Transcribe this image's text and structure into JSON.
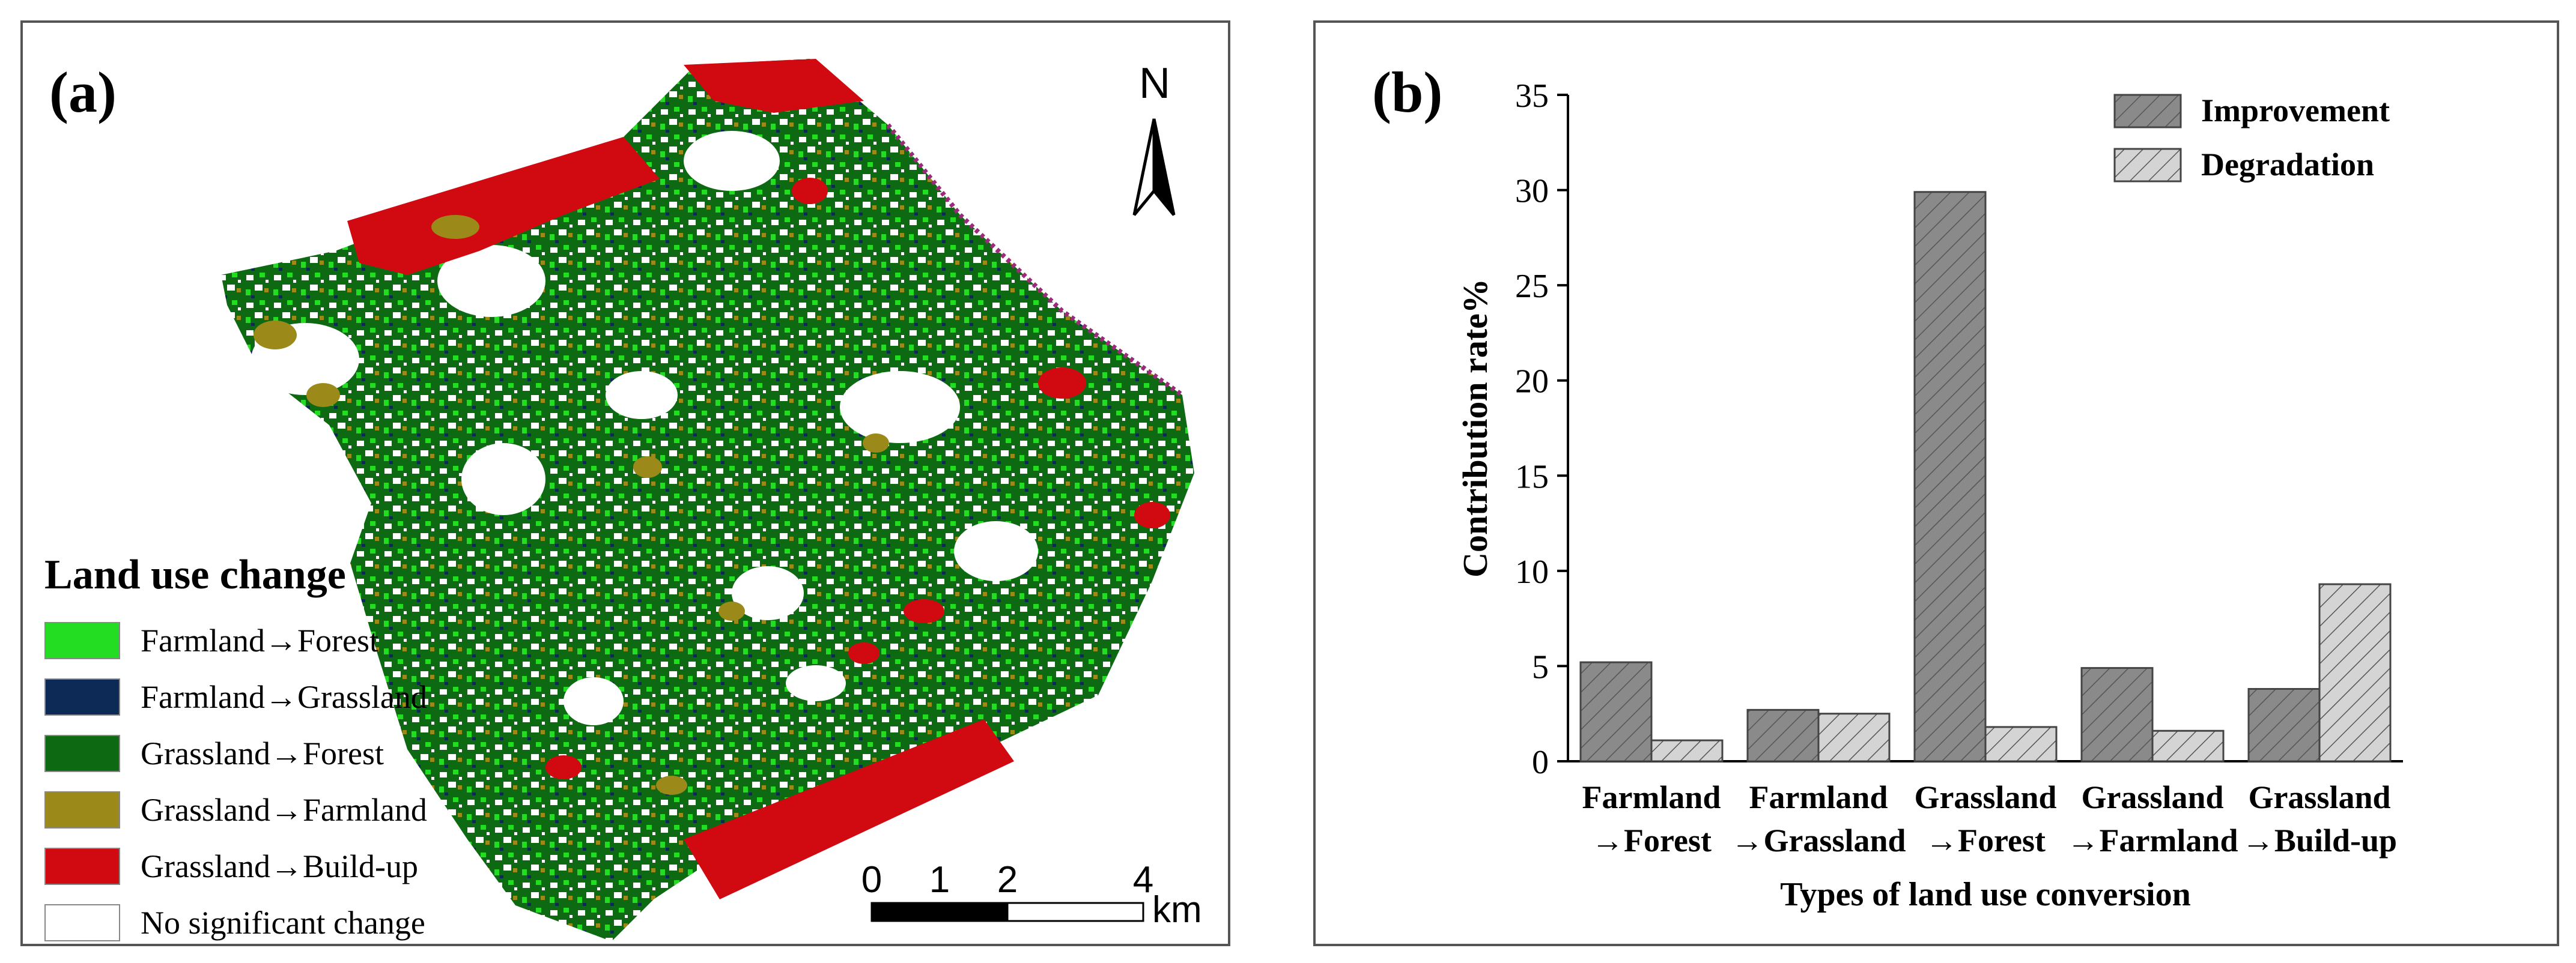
{
  "panel_a": {
    "label": "(a)",
    "legend_title": "Land use change",
    "legend": [
      {
        "label": "Farmland→Forest",
        "color": "#22dd22"
      },
      {
        "label": "Farmland→Grassland",
        "color": "#0c2a55"
      },
      {
        "label": "Grassland→Forest",
        "color": "#0e6a12"
      },
      {
        "label": "Grassland→Farmland",
        "color": "#9b8a1a"
      },
      {
        "label": "Grassland→Build-up",
        "color": "#d10a12"
      },
      {
        "label": "No significant change",
        "color": "#ffffff"
      }
    ],
    "north_label": "N",
    "scale_ticks": [
      "0",
      "1",
      "2",
      "4"
    ],
    "scale_unit": "km"
  },
  "panel_b": {
    "label": "(b)"
  },
  "chart_data": {
    "type": "bar",
    "categories": [
      [
        "Farmland",
        "→Forest"
      ],
      [
        "Farmland",
        "→Grassland"
      ],
      [
        "Grassland",
        "→Forest"
      ],
      [
        "Grassland",
        "→Farmland"
      ],
      [
        "Grassland",
        "→Build-up"
      ]
    ],
    "series": [
      {
        "name": "Improvement",
        "values": [
          5.2,
          2.7,
          29.9,
          4.9,
          3.8
        ],
        "color": "#8a8a8a"
      },
      {
        "name": "Degradation",
        "values": [
          1.1,
          2.5,
          1.8,
          1.6,
          9.3
        ],
        "color": "#d4d4d4"
      }
    ],
    "xlabel": "Types of land use conversion",
    "ylabel": "Contribution rate%",
    "ylim": [
      0,
      35
    ],
    "yticks": [
      0,
      5,
      10,
      15,
      20,
      25,
      30,
      35
    ],
    "grid": false,
    "legend_position": "top-right"
  }
}
